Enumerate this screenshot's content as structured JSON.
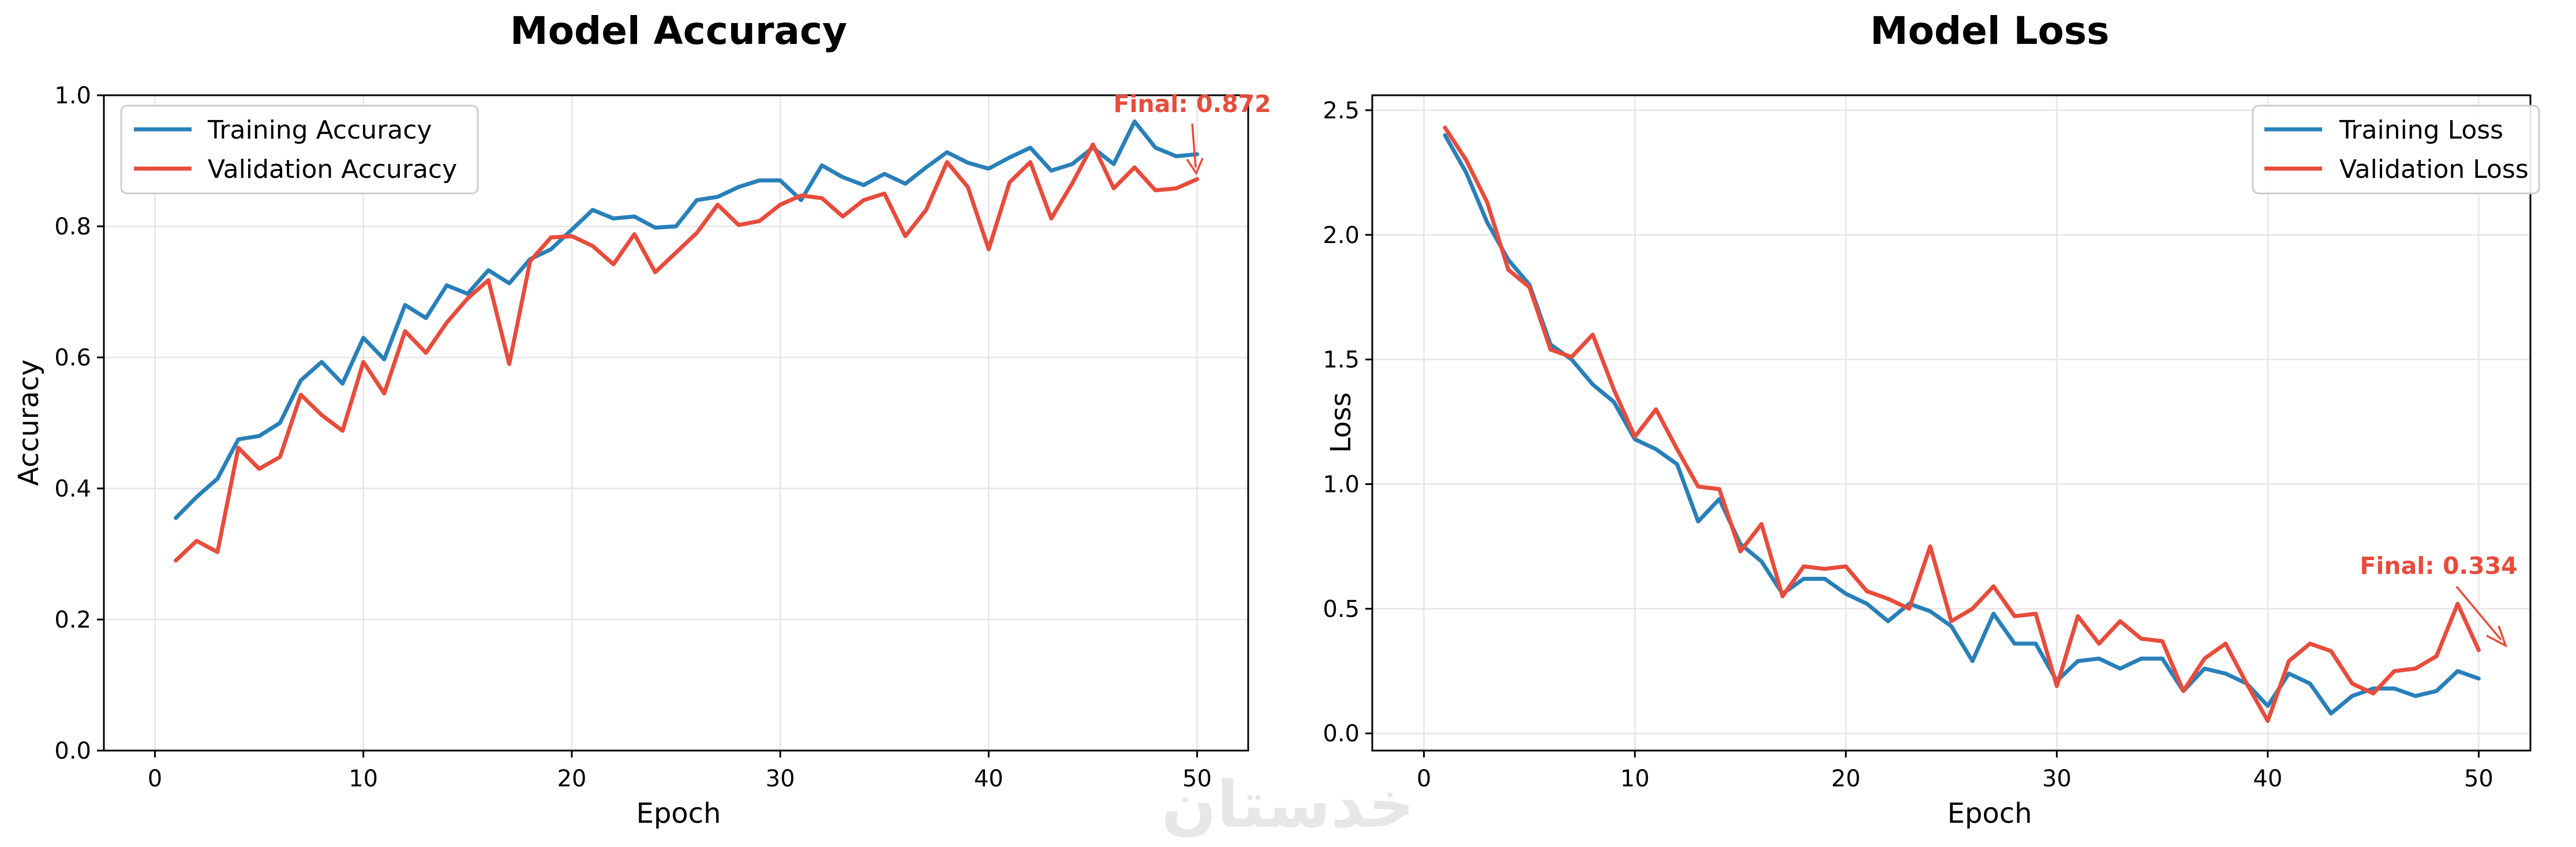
{
  "colors": {
    "training": "#2980b9",
    "validation": "#e74c3c",
    "grid": "#e6e6e6",
    "axis": "#000000",
    "annotation": "#e74c3c",
    "watermark": "#e5e5e5"
  },
  "watermark": {
    "text": "خدستان"
  },
  "chart_data": [
    {
      "type": "line",
      "title": "Model Accuracy",
      "xlabel": "Epoch",
      "ylabel": "Accuracy",
      "xlim": [
        -2.45,
        52.45
      ],
      "ylim": [
        0.0,
        1.0
      ],
      "xticks": [
        0,
        10,
        20,
        30,
        40,
        50
      ],
      "yticks": [
        0.0,
        0.2,
        0.4,
        0.6,
        0.8,
        1.0
      ],
      "ytick_labels": [
        "0.0",
        "0.2",
        "0.4",
        "0.6",
        "0.8",
        "1.0"
      ],
      "grid": true,
      "legend": "top-left",
      "x": [
        1,
        2,
        3,
        4,
        5,
        6,
        7,
        8,
        9,
        10,
        11,
        12,
        13,
        14,
        15,
        16,
        17,
        18,
        19,
        20,
        21,
        22,
        23,
        24,
        25,
        26,
        27,
        28,
        29,
        30,
        31,
        32,
        33,
        34,
        35,
        36,
        37,
        38,
        39,
        40,
        41,
        42,
        43,
        44,
        45,
        46,
        47,
        48,
        49,
        50
      ],
      "series": [
        {
          "name": "Training Accuracy",
          "color": "#2980b9",
          "values": [
            0.355,
            0.387,
            0.415,
            0.475,
            0.48,
            0.5,
            0.565,
            0.593,
            0.56,
            0.63,
            0.597,
            0.68,
            0.66,
            0.71,
            0.697,
            0.733,
            0.713,
            0.75,
            0.765,
            0.795,
            0.825,
            0.812,
            0.815,
            0.798,
            0.8,
            0.84,
            0.845,
            0.86,
            0.87,
            0.87,
            0.84,
            0.893,
            0.875,
            0.863,
            0.88,
            0.865,
            0.89,
            0.913,
            0.897,
            0.888,
            0.905,
            0.92,
            0.885,
            0.895,
            0.92,
            0.895,
            0.96,
            0.92,
            0.907,
            0.91
          ]
        },
        {
          "name": "Validation Accuracy",
          "color": "#e74c3c",
          "values": [
            0.29,
            0.32,
            0.303,
            0.462,
            0.43,
            0.448,
            0.543,
            0.512,
            0.488,
            0.593,
            0.545,
            0.64,
            0.607,
            0.653,
            0.69,
            0.718,
            0.59,
            0.747,
            0.783,
            0.785,
            0.77,
            0.742,
            0.788,
            0.73,
            0.76,
            0.79,
            0.833,
            0.802,
            0.808,
            0.833,
            0.847,
            0.843,
            0.815,
            0.84,
            0.85,
            0.785,
            0.825,
            0.898,
            0.86,
            0.765,
            0.867,
            0.898,
            0.812,
            0.865,
            0.925,
            0.858,
            0.89,
            0.855,
            0.858,
            0.872
          ]
        }
      ],
      "annotation": {
        "text": "Final: 0.872",
        "x": 50,
        "y": 0.872
      }
    },
    {
      "type": "line",
      "title": "Model Loss",
      "xlabel": "Epoch",
      "ylabel": "Loss",
      "xlim": [
        -2.45,
        52.45
      ],
      "ylim": [
        -0.069,
        2.56
      ],
      "xticks": [
        0,
        10,
        20,
        30,
        40,
        50
      ],
      "yticks": [
        0.0,
        0.5,
        1.0,
        1.5,
        2.0,
        2.5
      ],
      "ytick_labels": [
        "0.0",
        "0.5",
        "1.0",
        "1.5",
        "2.0",
        "2.5"
      ],
      "grid": true,
      "legend": "top-right",
      "x": [
        1,
        2,
        3,
        4,
        5,
        6,
        7,
        8,
        9,
        10,
        11,
        12,
        13,
        14,
        15,
        16,
        17,
        18,
        19,
        20,
        21,
        22,
        23,
        24,
        25,
        26,
        27,
        28,
        29,
        30,
        31,
        32,
        33,
        34,
        35,
        36,
        37,
        38,
        39,
        40,
        41,
        42,
        43,
        44,
        45,
        46,
        47,
        48,
        49,
        50
      ],
      "series": [
        {
          "name": "Training Loss",
          "color": "#2980b9",
          "values": [
            2.4,
            2.25,
            2.05,
            1.9,
            1.8,
            1.56,
            1.5,
            1.4,
            1.33,
            1.18,
            1.14,
            1.08,
            0.85,
            0.94,
            0.76,
            0.69,
            0.56,
            0.62,
            0.62,
            0.56,
            0.52,
            0.45,
            0.52,
            0.49,
            0.43,
            0.29,
            0.48,
            0.36,
            0.36,
            0.21,
            0.29,
            0.3,
            0.26,
            0.3,
            0.3,
            0.17,
            0.26,
            0.24,
            0.2,
            0.11,
            0.24,
            0.2,
            0.08,
            0.15,
            0.18,
            0.18,
            0.15,
            0.17,
            0.25,
            0.22
          ]
        },
        {
          "name": "Validation Loss",
          "color": "#e74c3c",
          "values": [
            2.43,
            2.3,
            2.13,
            1.86,
            1.79,
            1.54,
            1.51,
            1.6,
            1.38,
            1.19,
            1.3,
            1.14,
            0.99,
            0.98,
            0.73,
            0.84,
            0.55,
            0.67,
            0.66,
            0.67,
            0.57,
            0.54,
            0.5,
            0.75,
            0.45,
            0.5,
            0.59,
            0.47,
            0.48,
            0.19,
            0.47,
            0.36,
            0.45,
            0.38,
            0.37,
            0.17,
            0.3,
            0.36,
            0.2,
            0.05,
            0.29,
            0.36,
            0.33,
            0.2,
            0.16,
            0.25,
            0.26,
            0.31,
            0.52,
            0.334
          ]
        }
      ],
      "annotation": {
        "text": "Final: 0.334",
        "x": 50,
        "y": 0.334
      }
    }
  ]
}
